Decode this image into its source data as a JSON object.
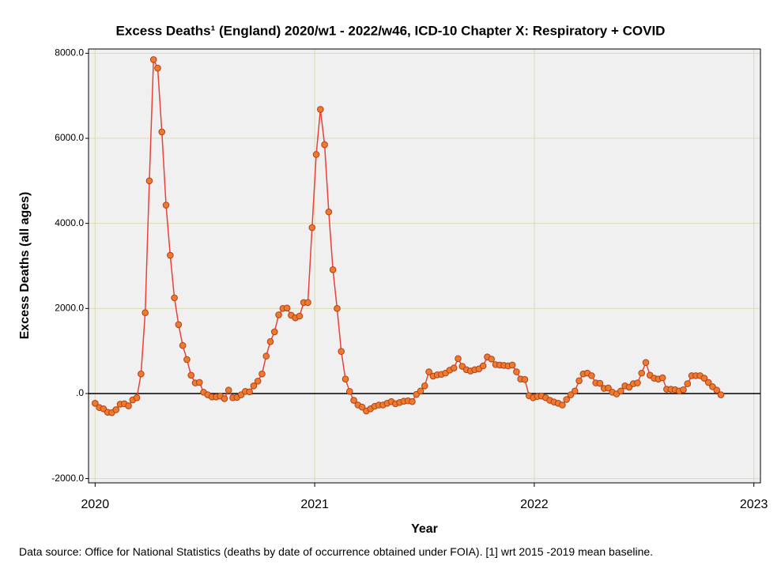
{
  "chart_data": {
    "type": "line",
    "title": "Excess Deaths¹ (England) 2020/w1 - 2022/w46, ICD-10 Chapter X: Respiratory + COVID",
    "xlabel": "Year",
    "ylabel": "Excess Deaths (all ages)",
    "footnote": "Data source: Office for National Statistics (deaths by date of occurrence obtained under FOIA). [1] wrt 2015 -2019 mean baseline.",
    "x": [
      2020,
      2020.019,
      2020.038,
      2020.057,
      2020.076,
      2020.095,
      2020.114,
      2020.133,
      2020.152,
      2020.171,
      2020.19,
      2020.209,
      2020.228,
      2020.247,
      2020.266,
      2020.285,
      2020.304,
      2020.323,
      2020.342,
      2020.361,
      2020.38,
      2020.399,
      2020.418,
      2020.437,
      2020.456,
      2020.475,
      2020.494,
      2020.513,
      2020.532,
      2020.551,
      2020.57,
      2020.589,
      2020.608,
      2020.627,
      2020.646,
      2020.665,
      2020.684,
      2020.703,
      2020.722,
      2020.741,
      2020.76,
      2020.779,
      2020.798,
      2020.817,
      2020.836,
      2020.855,
      2020.874,
      2020.893,
      2020.912,
      2020.931,
      2020.95,
      2020.969,
      2020.988,
      2021.007,
      2021.026,
      2021.045,
      2021.064,
      2021.083,
      2021.102,
      2021.121,
      2021.14,
      2021.159,
      2021.178,
      2021.197,
      2021.216,
      2021.235,
      2021.254,
      2021.273,
      2021.292,
      2021.311,
      2021.33,
      2021.349,
      2021.368,
      2021.387,
      2021.406,
      2021.425,
      2021.444,
      2021.463,
      2021.482,
      2021.501,
      2021.52,
      2021.539,
      2021.558,
      2021.577,
      2021.596,
      2021.615,
      2021.634,
      2021.653,
      2021.672,
      2021.691,
      2021.71,
      2021.729,
      2021.748,
      2021.767,
      2021.786,
      2021.805,
      2021.824,
      2021.843,
      2021.862,
      2021.881,
      2021.9,
      2021.919,
      2021.938,
      2021.957,
      2021.976,
      2021.995,
      2022.014,
      2022.033,
      2022.052,
      2022.071,
      2022.09,
      2022.109,
      2022.128,
      2022.147,
      2022.166,
      2022.185,
      2022.204,
      2022.223,
      2022.242,
      2022.261,
      2022.28,
      2022.299,
      2022.318,
      2022.337,
      2022.356,
      2022.375,
      2022.394,
      2022.413,
      2022.432,
      2022.451,
      2022.47,
      2022.489,
      2022.508,
      2022.527,
      2022.546,
      2022.565,
      2022.584,
      2022.603,
      2022.622,
      2022.641,
      2022.66,
      2022.679,
      2022.698,
      2022.717,
      2022.736,
      2022.755,
      2022.774,
      2022.793,
      2022.812,
      2022.831,
      2022.85
    ],
    "series": [
      {
        "name": "Excess Deaths",
        "color": "#e8413a",
        "marker_color": "#ee7a2c",
        "values": [
          -230,
          -330,
          -360,
          -440,
          -450,
          -380,
          -250,
          -240,
          -290,
          -150,
          -100,
          460,
          1900,
          5000,
          7850,
          7650,
          6150,
          4430,
          3250,
          2250,
          1620,
          1130,
          800,
          430,
          250,
          260,
          30,
          -30,
          -80,
          -80,
          -60,
          -120,
          80,
          -100,
          -90,
          -30,
          50,
          40,
          180,
          290,
          460,
          880,
          1220,
          1450,
          1850,
          2000,
          2010,
          1840,
          1780,
          1820,
          2140,
          2140,
          3900,
          5620,
          6680,
          5850,
          4270,
          2910,
          2000,
          990,
          340,
          50,
          -160,
          -270,
          -320,
          -410,
          -360,
          -300,
          -270,
          -270,
          -230,
          -190,
          -240,
          -210,
          -180,
          -170,
          -190,
          -20,
          60,
          180,
          510,
          410,
          440,
          450,
          480,
          550,
          600,
          820,
          640,
          560,
          530,
          560,
          580,
          650,
          860,
          810,
          680,
          670,
          660,
          650,
          670,
          510,
          340,
          330,
          -50,
          -100,
          -70,
          -60,
          -100,
          -160,
          -200,
          -230,
          -270,
          -140,
          -30,
          60,
          300,
          460,
          480,
          420,
          250,
          240,
          120,
          130,
          30,
          -10,
          60,
          180,
          150,
          230,
          250,
          480,
          730,
          430,
          360,
          340,
          370,
          100,
          100,
          90,
          60,
          90,
          230,
          420,
          420,
          420,
          360,
          260,
          160,
          80,
          -30
        ]
      }
    ],
    "xlim": [
      2019.97,
      2023.03
    ],
    "xticks": [
      2020,
      2021,
      2022,
      2023
    ],
    "ylim": [
      -2100,
      8100
    ],
    "yticks": [
      {
        "value": -2000,
        "label": "-2000.0"
      },
      {
        "value": 0,
        "label": ".0"
      },
      {
        "value": 2000,
        "label": "2000.0"
      },
      {
        "value": 4000,
        "label": "4000.0"
      },
      {
        "value": 6000,
        "label": "6000.0"
      },
      {
        "value": 8000,
        "label": "8000.0"
      }
    ],
    "reference_line": 0,
    "grid": true
  }
}
